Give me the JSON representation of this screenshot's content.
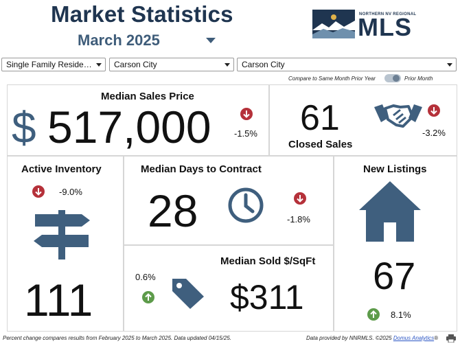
{
  "header": {
    "title": "Market Statistics",
    "month": "March 2025",
    "logo_subtitle": "NORTHERN NV REGIONAL",
    "logo_text": "MLS"
  },
  "filters": {
    "property_type": "Single Family Residenc...",
    "city_1": "Carson City",
    "city_2": "Carson City"
  },
  "toggle": {
    "left_label": "Compare to Same Month Prior Year",
    "right_label": "Prior Month"
  },
  "stats": {
    "median_sales_price": {
      "label": "Median Sales Price",
      "currency": "$",
      "value": "517,000",
      "change": "-1.5%",
      "direction": "down"
    },
    "closed_sales": {
      "label": "Closed Sales",
      "value": "61",
      "change": "-3.2%",
      "direction": "down"
    },
    "active_inventory": {
      "label": "Active Inventory",
      "value": "111",
      "change": "-9.0%",
      "direction": "down"
    },
    "median_days": {
      "label": "Median Days to Contract",
      "value": "28",
      "change": "-1.8%",
      "direction": "down"
    },
    "new_listings": {
      "label": "New Listings",
      "value": "67",
      "change": "8.1%",
      "direction": "up"
    },
    "sold_sqft": {
      "label": "Median Sold $/SqFt",
      "value": "$311",
      "change": "0.6%",
      "direction": "up"
    }
  },
  "footer": {
    "left": "Percent change compares results from February 2025 to March 2025.  Data updated 04/15/25.",
    "right_prefix": "Data provided by NNRMLS. ©2025 ",
    "right_link": "Domus Analytics",
    "right_suffix": "®"
  },
  "colors": {
    "navy": "#1f3550",
    "icon_blue": "#3f5f7e",
    "down_red": "#b5313a",
    "up_green": "#5d9b4a"
  },
  "icons": [
    "dollar-icon",
    "handshake-icon",
    "signpost-icon",
    "clock-icon",
    "house-icon",
    "price-tag-icon",
    "print-icon"
  ]
}
